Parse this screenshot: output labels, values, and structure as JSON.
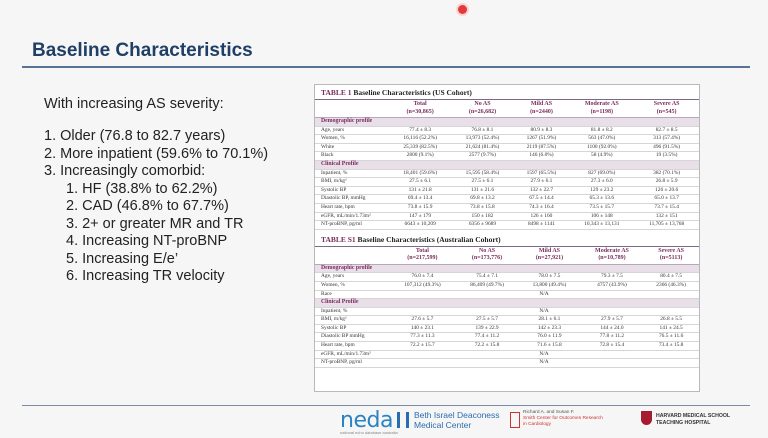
{
  "slide": {
    "title": "Baseline Characteristics",
    "intro": "With increasing AS severity:",
    "points": [
      "1.  Older (76.8 to 82.7 years)",
      "2.  More inpatient (59.6% to 70.1%)",
      "3.  Increasingly comorbid:"
    ],
    "subpoints": [
      "1.  HF (38.8% to 62.2%)",
      "2.  CAD (46.8% to 67.7%)",
      "3.  2+ or greater MR and TR",
      "4.  Increasing NT-proBNP",
      "5.  Increasing E/e’",
      "6.  Increasing TR velocity"
    ]
  },
  "us_table": {
    "tag": "TABLE 1",
    "caption": "Baseline Characteristics (US Cohort)",
    "headers": [
      "",
      "Total\n(n=30,865)",
      "No AS\n(n=26,682)",
      "Mild AS\n(n=2440)",
      "Moderate AS\n(n=1198)",
      "Severe AS\n(n=545)"
    ],
    "sections": [
      {
        "name": "Demographic profile",
        "rows": [
          [
            "Age, years",
            "77.4 ± 8.3",
            "76.8 ± 8.1",
            "80.9 ± 8.3",
            "81.8 ± 8.2",
            "82.7 ± 8.5"
          ],
          [
            "Women, %",
            "16,116 (52.2%)",
            "13,973 (52.4%)",
            "1267 (51.9%)",
            "563 (47.0%)",
            "313 (57.4%)"
          ],
          [
            "White",
            "25,339 (82.5%)",
            "21,624 (81.4%)",
            "2119 (87.5%)",
            "1100 (92.0%)",
            "496 (91.5%)"
          ],
          [
            "Black",
            "2800 (9.1%)",
            "2577 (9.7%)",
            "146 (6.0%)",
            "58 (4.9%)",
            "19 (3.5%)"
          ]
        ]
      },
      {
        "name": "Clinical Profile",
        "rows": [
          [
            "Inpatient, %",
            "18,401 (59.6%)",
            "15,595 (58.4%)",
            "1597 (65.5%)",
            "827 (69.0%)",
            "382 (70.1%)"
          ],
          [
            "BMI, m/kg²",
            "27.5 ± 6.1",
            "27.5 ± 6.1",
            "27.9 ± 6.1",
            "27.3 ± 6.0",
            "26.8 ± 5.9"
          ],
          [
            "Systolic BP",
            "131 ± 21.8",
            "131 ± 21.6",
            "132 ± 22.7",
            "129 ± 23.2",
            "126 ± 20.6"
          ],
          [
            "Diastolic BP, mmHg",
            "69.4 ± 13.4",
            "69.8 ± 13.2",
            "67.5 ± 14.4",
            "65.3 ± 13.6",
            "65.0 ± 13.7"
          ],
          [
            "Heart rate, bpm",
            "73.8 ± 15.9",
            "73.8 ± 15.8",
            "74.3 ± 16.4",
            "73.5 ± 15.7",
            "73.7 ± 15.4"
          ],
          [
            "eGFR, mL/min/1.73m²",
            "147 ± 179",
            "150 ± 182",
            "126 ± 160",
            "106 ± 148",
            "132 ± 151"
          ],
          [
            "NT-proBNP, pg/ml",
            "6643 ± 10,209",
            "6356 ± 9689",
            "8498 ± 1141",
            "10,343 ± 13,131",
            "11,705 ± 13,768"
          ]
        ]
      }
    ]
  },
  "au_table": {
    "tag": "TABLE S1",
    "caption": "Baseline Characteristics (Australian Cohort)",
    "headers": [
      "",
      "Total\n(n=217,599)",
      "No AS\n(n=173,776)",
      "Mild AS\n(n=27,921)",
      "Moderate AS\n(n=10,789)",
      "Severe AS\n(n=5113)"
    ],
    "sections": [
      {
        "name": "Demographic profile",
        "rows": [
          [
            "Age, years",
            "76.0 ± 7.4",
            "75.4 ± 7.1",
            "78.0 ± 7.5",
            "79.3 ± 7.5",
            "80.4 ± 7.5"
          ],
          [
            "Women, %",
            "107,312 (49.3%)",
            "86,409 (49.7%)",
            "13,800 (49.4%)",
            "4757 (43.9%)",
            "2366 (46.3%)"
          ],
          [
            "Race",
            "N/A"
          ]
        ]
      },
      {
        "name": "Clinical Profile",
        "rows": [
          [
            "Inpatient, %",
            "N/A"
          ],
          [
            "BMI, m/kg²",
            "27.6 ± 5.7",
            "27.5 ± 5.7",
            "28.1 ± 6.1",
            "27.9 ± 5.7",
            "26.8 ± 5.5"
          ],
          [
            "Systolic BP",
            "140 ± 23.1",
            "139 ± 22.9",
            "142 ± 23.3",
            "144 ± 24.0",
            "141 ± 24.5"
          ],
          [
            "Diastolic BP mmHg",
            "77.3 ± 11.3",
            "77.4 ± 11.2",
            "76.0 ± 11.9",
            "77.8 ± 11.2",
            "76.5 ± 11.6"
          ],
          [
            "Heart rate, bpm",
            "72.2 ± 15.7",
            "72.2 ± 15.8",
            "71.6 ± 15.8",
            "72.8 ± 15.4",
            "73.4 ± 15.8"
          ],
          [
            "eGFR, mL/min/1.73m²",
            "N/A"
          ],
          [
            "NT-proBNP, pg/ml",
            "N/A"
          ]
        ]
      }
    ]
  },
  "footer": {
    "neda": "neda",
    "neda_sub": "national echo database australia",
    "bidmc_line1": "Beth Israel Deaconess",
    "bidmc_line2": "Medical Center",
    "smith_line1": "Richard A. and Susan F.",
    "smith_line2": "Smith Center for Outcomes Research",
    "smith_line3": "in Cardiology",
    "harvard_line1": "HARVARD MEDICAL SCHOOL",
    "harvard_line2": "TEACHING HOSPITAL"
  }
}
